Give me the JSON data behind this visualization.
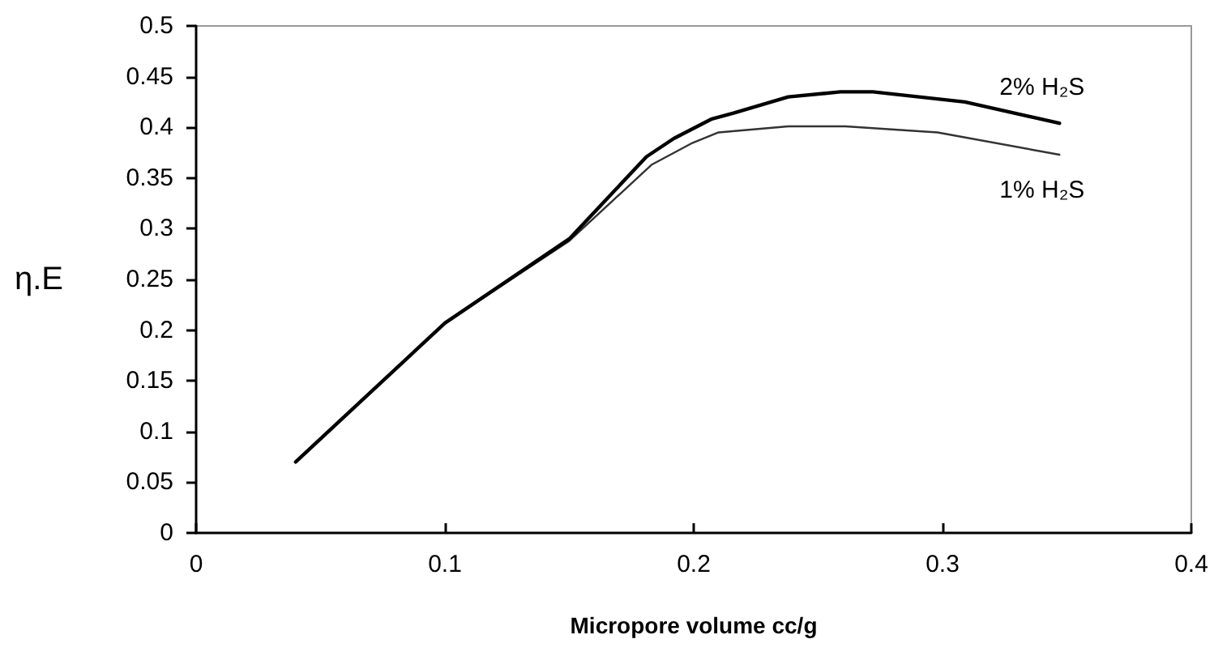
{
  "chart_data": {
    "type": "line",
    "xlabel": "Micropore volume cc/g",
    "ylabel": "η.E",
    "xlim": [
      0,
      0.4
    ],
    "xticks": [
      0,
      0.1,
      0.2,
      0.3,
      0.4
    ],
    "ylim": [
      0,
      0.5
    ],
    "yticks": [
      0,
      0.05,
      0.1,
      0.15,
      0.2,
      0.25,
      0.3,
      0.35,
      0.4,
      0.45,
      0.5
    ],
    "grid": false,
    "legend": false,
    "marker": "none",
    "line_style": "solid",
    "series": [
      {
        "name": "2% H₂S",
        "color": "#000000",
        "x": [
          0.04,
          0.1,
          0.15,
          0.181,
          0.192,
          0.207,
          0.216,
          0.238,
          0.259,
          0.272,
          0.309,
          0.347
        ],
        "values": [
          0.07,
          0.207,
          0.29,
          0.371,
          0.389,
          0.408,
          0.414,
          0.43,
          0.435,
          0.435,
          0.425,
          0.404
        ]
      },
      {
        "name": "1% H₂S",
        "color": "#333333",
        "x": [
          0.04,
          0.1,
          0.15,
          0.183,
          0.199,
          0.21,
          0.238,
          0.261,
          0.298,
          0.347
        ],
        "values": [
          0.07,
          0.207,
          0.288,
          0.363,
          0.384,
          0.395,
          0.401,
          0.401,
          0.395,
          0.373
        ]
      }
    ]
  }
}
